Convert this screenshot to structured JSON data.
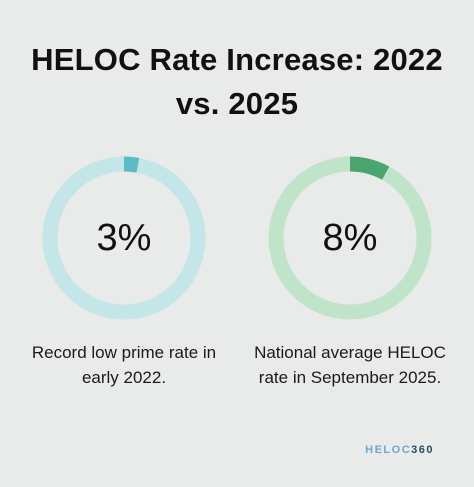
{
  "title_line1": "HELOC Rate Increase: 2022",
  "title_line2": "vs. 2025",
  "chart_data": [
    {
      "type": "pie",
      "value": 3,
      "value_label": "3%",
      "caption_line1": "Record low prime rate in",
      "caption_line2": "early 2022.",
      "fill_color": "#5bbcc4",
      "track_color": "#c4e6e8"
    },
    {
      "type": "pie",
      "value": 8,
      "value_label": "8%",
      "caption_line1": "National average HELOC",
      "caption_line2": "rate in September 2025.",
      "fill_color": "#4aa56e",
      "track_color": "#bfe4ca"
    }
  ],
  "brand": {
    "part1": "HELOC",
    "part2": "360"
  }
}
